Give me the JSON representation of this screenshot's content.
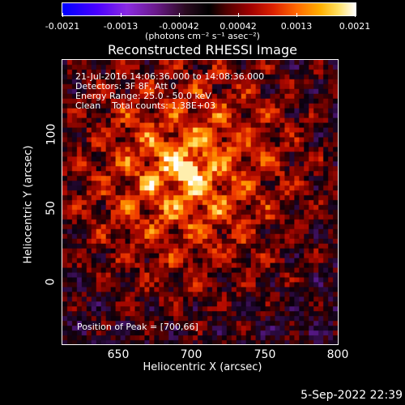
{
  "colorbar": {
    "ticks": [
      "-0.0021",
      "-0.0013",
      "-0.00042",
      "0.00042",
      "0.0013",
      "0.0021"
    ],
    "unit": "(photons cm⁻² s⁻¹ asec⁻²)"
  },
  "title": "Reconstructed RHESSI Image",
  "annotations": {
    "time": "21-Jul-2016 14:06:36.000 to 14:08:36.000",
    "detectors": "Detectors: 3F 8F, Att 0",
    "energy": "Energy Range: 25.0 - 50.0 keV",
    "clean": "Clean    Total counts: 1.38E+03",
    "peak": "Position of Peak = [700,66]"
  },
  "axes": {
    "xlabel": "Heliocentric X (arcsec)",
    "ylabel": "Heliocentric Y (arcsec)",
    "xticks": [
      "650",
      "700",
      "750",
      "800"
    ],
    "yticks": [
      "100",
      "50",
      "0"
    ]
  },
  "footer": {
    "date": "5-Sep-2022 22:39"
  },
  "image": {
    "x_range": [
      616,
      805
    ],
    "y_range": [
      -45,
      135
    ],
    "value_range": [
      -0.0021,
      0.0021
    ],
    "peak": [
      700,
      66
    ]
  }
}
